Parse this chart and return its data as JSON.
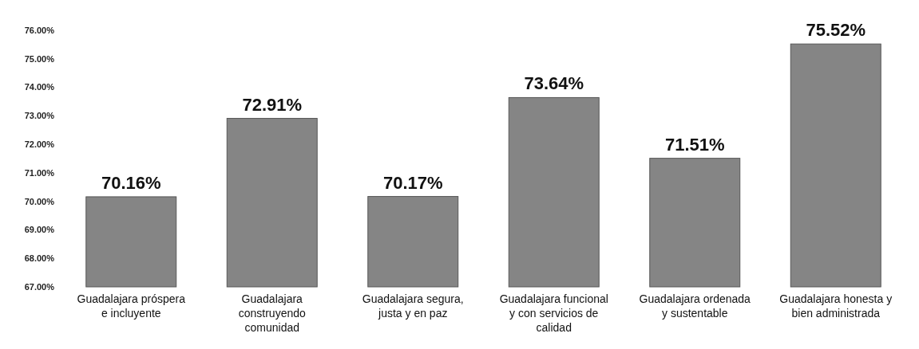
{
  "chart_data": {
    "type": "bar",
    "categories": [
      "Guadalajara próspera e incluyente",
      "Guadalajara construyendo comunidad",
      "Guadalajara segura, justa y en paz",
      "Guadalajara funcional y con servicios de calidad",
      "Guadalajara ordenada y sustentable",
      "Guadalajara honesta y bien administrada"
    ],
    "values": [
      70.16,
      72.91,
      70.17,
      73.64,
      71.51,
      75.52
    ],
    "value_labels": [
      "70.16%",
      "72.91%",
      "70.17%",
      "73.64%",
      "71.51%",
      "75.52%"
    ],
    "color": "#858585",
    "ylim": [
      67,
      76
    ],
    "yticks": [
      {
        "value": 67,
        "label": "67.00%"
      },
      {
        "value": 68,
        "label": "68.00%"
      },
      {
        "value": 69,
        "label": "69.00%"
      },
      {
        "value": 70,
        "label": "70.00%"
      },
      {
        "value": 71,
        "label": "71.00%"
      },
      {
        "value": 72,
        "label": "72.00%"
      },
      {
        "value": 73,
        "label": "73.00%"
      },
      {
        "value": 74,
        "label": "74.00%"
      },
      {
        "value": 75,
        "label": "75.00%"
      },
      {
        "value": 76,
        "label": "76.00%"
      }
    ],
    "grid": false
  }
}
